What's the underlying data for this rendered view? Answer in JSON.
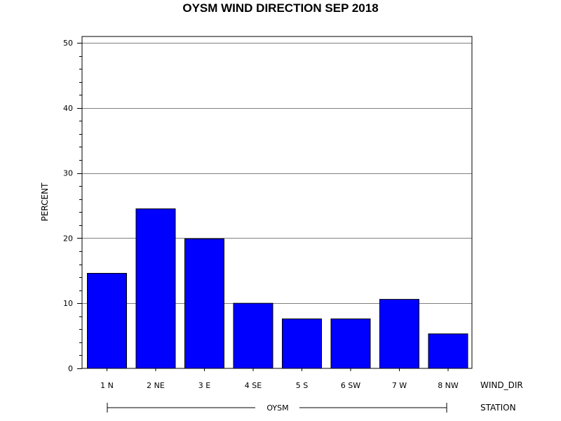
{
  "chart_data": {
    "type": "bar",
    "title": "OYSM WIND DIRECTION SEP 2018",
    "ylabel": "PERCENT",
    "xlabel": "WIND_DIR",
    "group_axis_label": "STATION",
    "group_label": "OYSM",
    "categories": [
      "1 N",
      "2 NE",
      "3 E",
      "4 SE",
      "5 S",
      "6 SW",
      "7 W",
      "8 NW"
    ],
    "values": [
      14.6,
      24.5,
      19.9,
      10.0,
      7.6,
      7.6,
      10.6,
      5.3
    ],
    "ylim": [
      0,
      50
    ],
    "yticks": [
      0,
      10,
      20,
      30,
      40,
      50
    ],
    "ytick_labels": [
      "0",
      "10",
      "20",
      "30",
      "40",
      "50"
    ],
    "grid": true,
    "bar_color": "#0000ff",
    "bar_edge_color": "#000000"
  }
}
